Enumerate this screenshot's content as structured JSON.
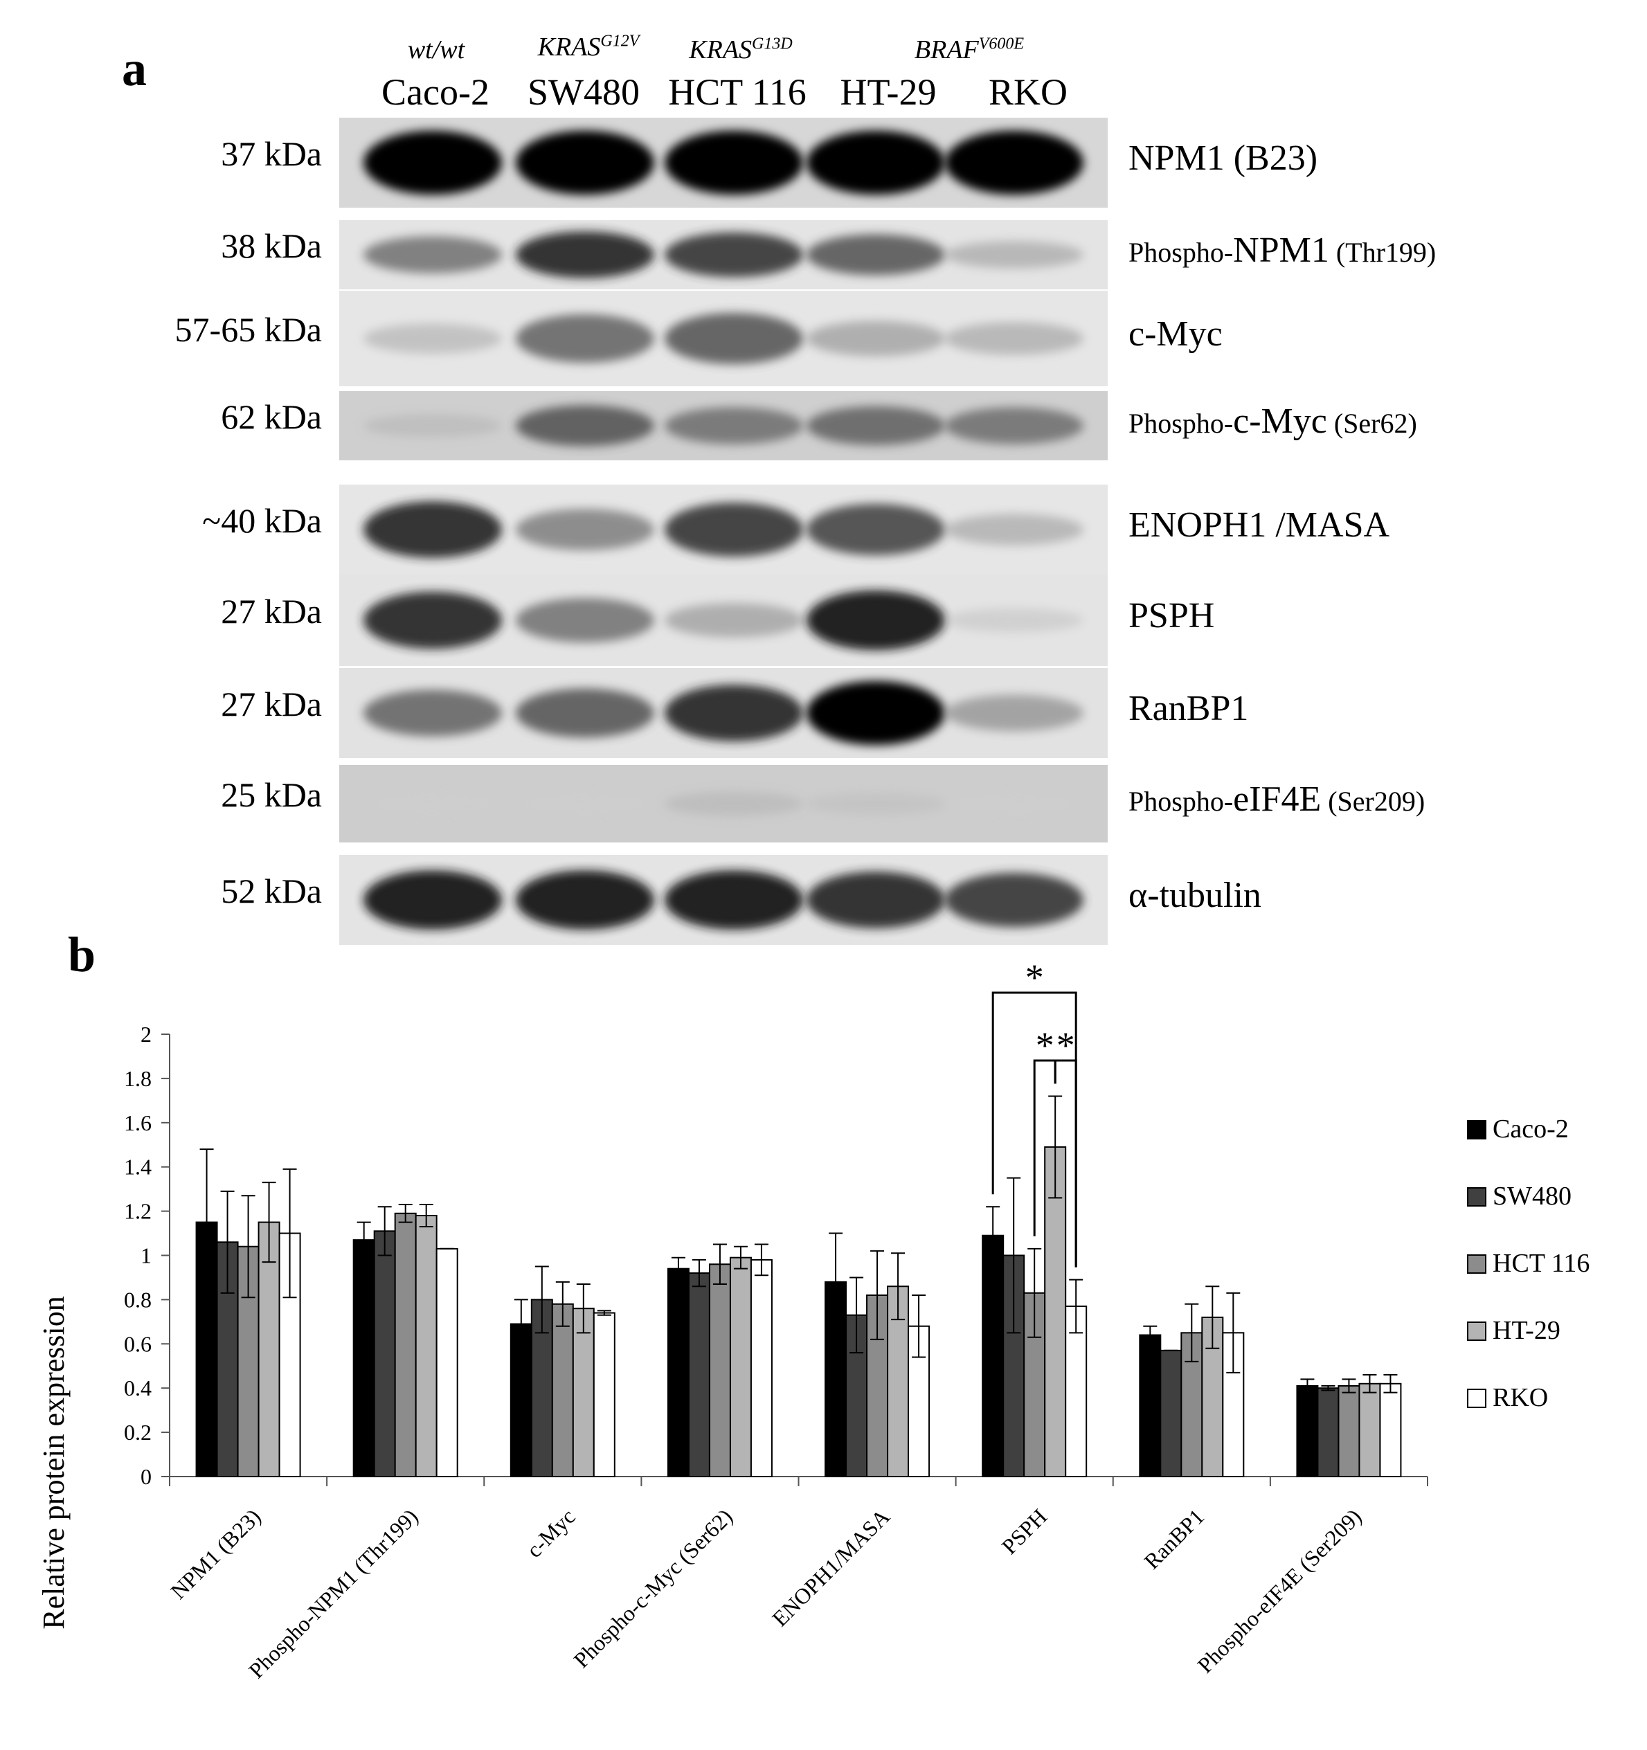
{
  "panel_a": {
    "letter": "a",
    "genotypes": [
      {
        "text": "wt/wt",
        "sup": ""
      },
      {
        "text": "KRAS",
        "sup": "G12V"
      },
      {
        "text": "KRAS",
        "sup": "G13D"
      },
      {
        "text": "BRAF",
        "sup": "V600E"
      }
    ],
    "cell_lines": [
      "Caco-2",
      "SW480",
      "HCT 116",
      "HT-29",
      "RKO"
    ],
    "blots": [
      {
        "mw": "37 kDa",
        "protein": "NPM1 (B23)",
        "prefix": "",
        "suffix": "",
        "bg": "#d7d7d7",
        "intensity": [
          1.0,
          1.0,
          1.0,
          1.0,
          1.0
        ]
      },
      {
        "mw": "38 kDa",
        "protein": "NPM1",
        "prefix": "Phospho-",
        "suffix": " (Thr199)",
        "bg": "#e4e4e4",
        "intensity": [
          0.6,
          0.85,
          0.8,
          0.7,
          0.35
        ]
      },
      {
        "mw": "57-65 kDa",
        "protein": "c-Myc",
        "prefix": "",
        "suffix": "",
        "bg": "#e6e6e6",
        "intensity": [
          0.3,
          0.65,
          0.7,
          0.4,
          0.35
        ]
      },
      {
        "mw": "62 kDa",
        "protein": "c-Myc",
        "prefix": "Phospho-",
        "suffix": " (Ser62)",
        "bg": "#cfcfcf",
        "intensity": [
          0.25,
          0.7,
          0.6,
          0.65,
          0.6
        ]
      },
      {
        "mw": "~40 kDa",
        "protein": "ENOPH1 /MASA",
        "prefix": "",
        "suffix": "",
        "bg": "#e6e6e6",
        "intensity": [
          0.85,
          0.55,
          0.8,
          0.75,
          0.35
        ]
      },
      {
        "mw": "27 kDa",
        "protein": "PSPH",
        "prefix": "",
        "suffix": "",
        "bg": "#e4e4e4",
        "intensity": [
          0.85,
          0.6,
          0.4,
          0.9,
          0.2
        ]
      },
      {
        "mw": "27 kDa",
        "protein": "RanBP1",
        "prefix": "",
        "suffix": "",
        "bg": "#e2e2e2",
        "intensity": [
          0.65,
          0.7,
          0.85,
          1.0,
          0.45
        ]
      },
      {
        "mw": "25 kDa",
        "protein": "eIF4E",
        "prefix": "Phospho-",
        "suffix": " (Ser209)",
        "bg": "#cdcdcd",
        "intensity": [
          0.12,
          0.12,
          0.25,
          0.2,
          0.12
        ]
      },
      {
        "mw": "52 kDa",
        "protein": "α-tubulin",
        "prefix": "",
        "suffix": "",
        "bg": "#e4e4e4",
        "intensity": [
          0.9,
          0.9,
          0.9,
          0.85,
          0.8
        ]
      }
    ]
  },
  "panel_b": {
    "letter": "b"
  },
  "chart_data": {
    "type": "bar",
    "title": "",
    "xlabel": "",
    "ylabel": "Relative protein expression",
    "ylim": [
      0,
      2
    ],
    "yticks": [
      "0",
      "0.2",
      "0.4",
      "0.6",
      "0.8",
      "1",
      "1.2",
      "1.4",
      "1.6",
      "1.8",
      "2"
    ],
    "categories": [
      "NPM1 (B23)",
      "Phospho-NPM1 (Thr199)",
      "c-Myc",
      "Phospho-c-Myc (Ser62)",
      "ENOPH1/MASA",
      "PSPH",
      "RanBP1",
      "Phospho-eIF4E (Ser209)"
    ],
    "series": [
      {
        "name": "Caco-2",
        "color": "#000000",
        "values": [
          1.15,
          1.07,
          0.69,
          0.94,
          0.88,
          1.09,
          0.64,
          0.41
        ],
        "errors": [
          0.33,
          0.08,
          0.11,
          0.05,
          0.22,
          0.13,
          0.04,
          0.03
        ]
      },
      {
        "name": "SW480",
        "color": "#404040",
        "values": [
          1.06,
          1.11,
          0.8,
          0.92,
          0.73,
          1.0,
          0.57,
          0.4
        ],
        "errors": [
          0.23,
          0.11,
          0.15,
          0.06,
          0.17,
          0.35,
          0.0,
          0.01
        ]
      },
      {
        "name": "HCT 116",
        "color": "#8c8c8c",
        "values": [
          1.04,
          1.19,
          0.78,
          0.96,
          0.82,
          0.83,
          0.65,
          0.41
        ],
        "errors": [
          0.23,
          0.04,
          0.1,
          0.09,
          0.2,
          0.2,
          0.13,
          0.03
        ]
      },
      {
        "name": "HT-29",
        "color": "#b4b4b4",
        "values": [
          1.15,
          1.18,
          0.76,
          0.99,
          0.86,
          1.49,
          0.72,
          0.42
        ],
        "errors": [
          0.18,
          0.05,
          0.11,
          0.05,
          0.15,
          0.23,
          0.14,
          0.04
        ]
      },
      {
        "name": "RKO",
        "color": "#ffffff",
        "values": [
          1.1,
          1.03,
          0.74,
          0.98,
          0.68,
          0.77,
          0.65,
          0.42
        ],
        "errors": [
          0.29,
          0.0,
          0.01,
          0.07,
          0.14,
          0.12,
          0.18,
          0.04
        ]
      }
    ],
    "significance": [
      {
        "category": "PSPH",
        "from": "Caco-2",
        "to": "RKO",
        "label": "*"
      },
      {
        "category": "PSPH",
        "from": "HCT 116",
        "to": "HT-29",
        "label": "*"
      },
      {
        "category": "PSPH",
        "from": "HT-29",
        "to": "RKO",
        "label": "*"
      }
    ],
    "legend": "right"
  }
}
